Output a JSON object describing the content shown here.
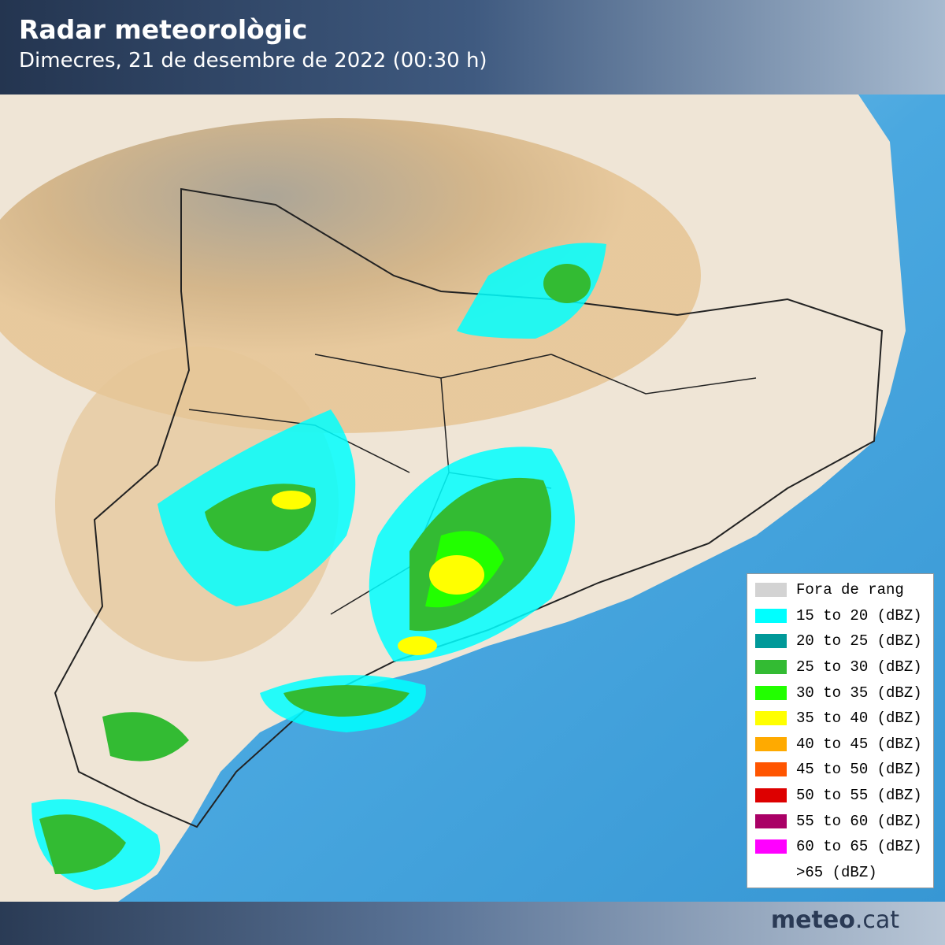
{
  "header": {
    "title": "Radar meteorològic",
    "subtitle": "Dimecres, 21 de desembre de 2022 (00:30 h)"
  },
  "legend": {
    "items": [
      {
        "label": "Fora de rang",
        "color": "#d3d3d3"
      },
      {
        "label": "15 to 20 (dBZ)",
        "color": "#00ffff"
      },
      {
        "label": "20 to 25 (dBZ)",
        "color": "#009999"
      },
      {
        "label": "25 to 30 (dBZ)",
        "color": "#33bb33"
      },
      {
        "label": "30 to 35 (dBZ)",
        "color": "#22ff00"
      },
      {
        "label": "35 to 40 (dBZ)",
        "color": "#ffff00"
      },
      {
        "label": "40 to 45 (dBZ)",
        "color": "#ffaa00"
      },
      {
        "label": "45 to 50 (dBZ)",
        "color": "#ff5500"
      },
      {
        "label": "50 to 55 (dBZ)",
        "color": "#dd0000"
      },
      {
        "label": "55 to 60 (dBZ)",
        "color": "#aa0066"
      },
      {
        "label": "60 to 65 (dBZ)",
        "color": "#ff00ff"
      },
      {
        "label": ">65 (dBZ)"
      }
    ]
  },
  "footer": {
    "logo_bold": "meteo",
    "logo_rest": ".cat"
  }
}
